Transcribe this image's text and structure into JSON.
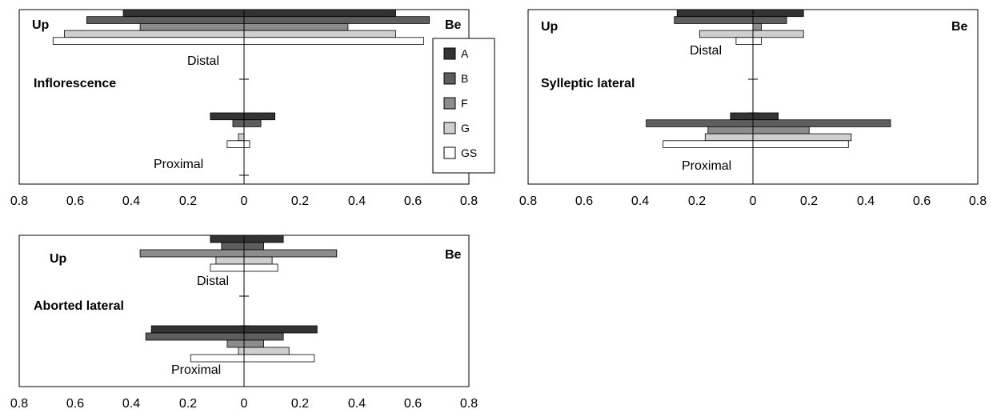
{
  "chart_data": [
    {
      "type": "bar",
      "orientation": "horizontal-diverging",
      "title": "Inflorescence",
      "left_label": "Up",
      "right_label": "Be",
      "groups": [
        "Distal",
        "Proximal"
      ],
      "xlim": [
        -0.8,
        0.8
      ],
      "tick_labels": [
        "0.8",
        "0.6",
        "0.4",
        "0.2",
        "0",
        "0.2",
        "0.4",
        "0.6",
        "0.8"
      ],
      "series": [
        {
          "name": "A",
          "color": "#333333",
          "Distal": {
            "Up": 0.43,
            "Be": 0.54
          },
          "Proximal": {
            "Up": 0.12,
            "Be": 0.11
          }
        },
        {
          "name": "B",
          "color": "#5e5e5e",
          "Distal": {
            "Up": 0.56,
            "Be": 0.66
          },
          "Proximal": {
            "Up": 0.04,
            "Be": 0.06
          }
        },
        {
          "name": "F",
          "color": "#8c8c8c",
          "Distal": {
            "Up": 0.37,
            "Be": 0.37
          },
          "Proximal": {
            "Up": 0.0,
            "Be": 0.0
          }
        },
        {
          "name": "G",
          "color": "#cfcfcf",
          "Distal": {
            "Up": 0.64,
            "Be": 0.54
          },
          "Proximal": {
            "Up": 0.02,
            "Be": 0.0
          }
        },
        {
          "name": "GS",
          "color": "#ffffff",
          "Distal": {
            "Up": 0.68,
            "Be": 0.64
          },
          "Proximal": {
            "Up": 0.06,
            "Be": 0.02
          }
        }
      ]
    },
    {
      "type": "bar",
      "orientation": "horizontal-diverging",
      "title": "Sylleptic lateral",
      "left_label": "Up",
      "right_label": "Be",
      "groups": [
        "Distal",
        "Proximal"
      ],
      "xlim": [
        -0.8,
        0.8
      ],
      "tick_labels": [
        "0.8",
        "0.6",
        "0.4",
        "0.2",
        "0",
        "0.2",
        "0.4",
        "0.6",
        "0.8"
      ],
      "series": [
        {
          "name": "A",
          "color": "#333333",
          "Distal": {
            "Up": 0.27,
            "Be": 0.18
          },
          "Proximal": {
            "Up": 0.08,
            "Be": 0.09
          }
        },
        {
          "name": "B",
          "color": "#5e5e5e",
          "Distal": {
            "Up": 0.28,
            "Be": 0.12
          },
          "Proximal": {
            "Up": 0.38,
            "Be": 0.49
          }
        },
        {
          "name": "F",
          "color": "#8c8c8c",
          "Distal": {
            "Up": 0.0,
            "Be": 0.03
          },
          "Proximal": {
            "Up": 0.16,
            "Be": 0.2
          }
        },
        {
          "name": "G",
          "color": "#cfcfcf",
          "Distal": {
            "Up": 0.19,
            "Be": 0.18
          },
          "Proximal": {
            "Up": 0.17,
            "Be": 0.35
          }
        },
        {
          "name": "GS",
          "color": "#ffffff",
          "Distal": {
            "Up": 0.06,
            "Be": 0.03
          },
          "Proximal": {
            "Up": 0.32,
            "Be": 0.34
          }
        }
      ]
    },
    {
      "type": "bar",
      "orientation": "horizontal-diverging",
      "title": "Aborted lateral",
      "left_label": "Up",
      "right_label": "Be",
      "groups": [
        "Distal",
        "Proximal"
      ],
      "xlim": [
        -0.8,
        0.8
      ],
      "tick_labels": [
        "0.8",
        "0.6",
        "0.4",
        "0.2",
        "0",
        "0.2",
        "0.4",
        "0.6",
        "0.8"
      ],
      "series": [
        {
          "name": "A",
          "color": "#333333",
          "Distal": {
            "Up": 0.12,
            "Be": 0.14
          },
          "Proximal": {
            "Up": 0.33,
            "Be": 0.26
          }
        },
        {
          "name": "B",
          "color": "#5e5e5e",
          "Distal": {
            "Up": 0.08,
            "Be": 0.07
          },
          "Proximal": {
            "Up": 0.35,
            "Be": 0.14
          }
        },
        {
          "name": "F",
          "color": "#8c8c8c",
          "Distal": {
            "Up": 0.37,
            "Be": 0.33
          },
          "Proximal": {
            "Up": 0.06,
            "Be": 0.07
          }
        },
        {
          "name": "G",
          "color": "#cfcfcf",
          "Distal": {
            "Up": 0.1,
            "Be": 0.1
          },
          "Proximal": {
            "Up": 0.02,
            "Be": 0.16
          }
        },
        {
          "name": "GS",
          "color": "#ffffff",
          "Distal": {
            "Up": 0.12,
            "Be": 0.12
          },
          "Proximal": {
            "Up": 0.19,
            "Be": 0.25
          }
        }
      ]
    }
  ],
  "legend": {
    "placement": "inside first panel, right of zero line",
    "entries": [
      "A",
      "B",
      "F",
      "G",
      "GS"
    ]
  }
}
